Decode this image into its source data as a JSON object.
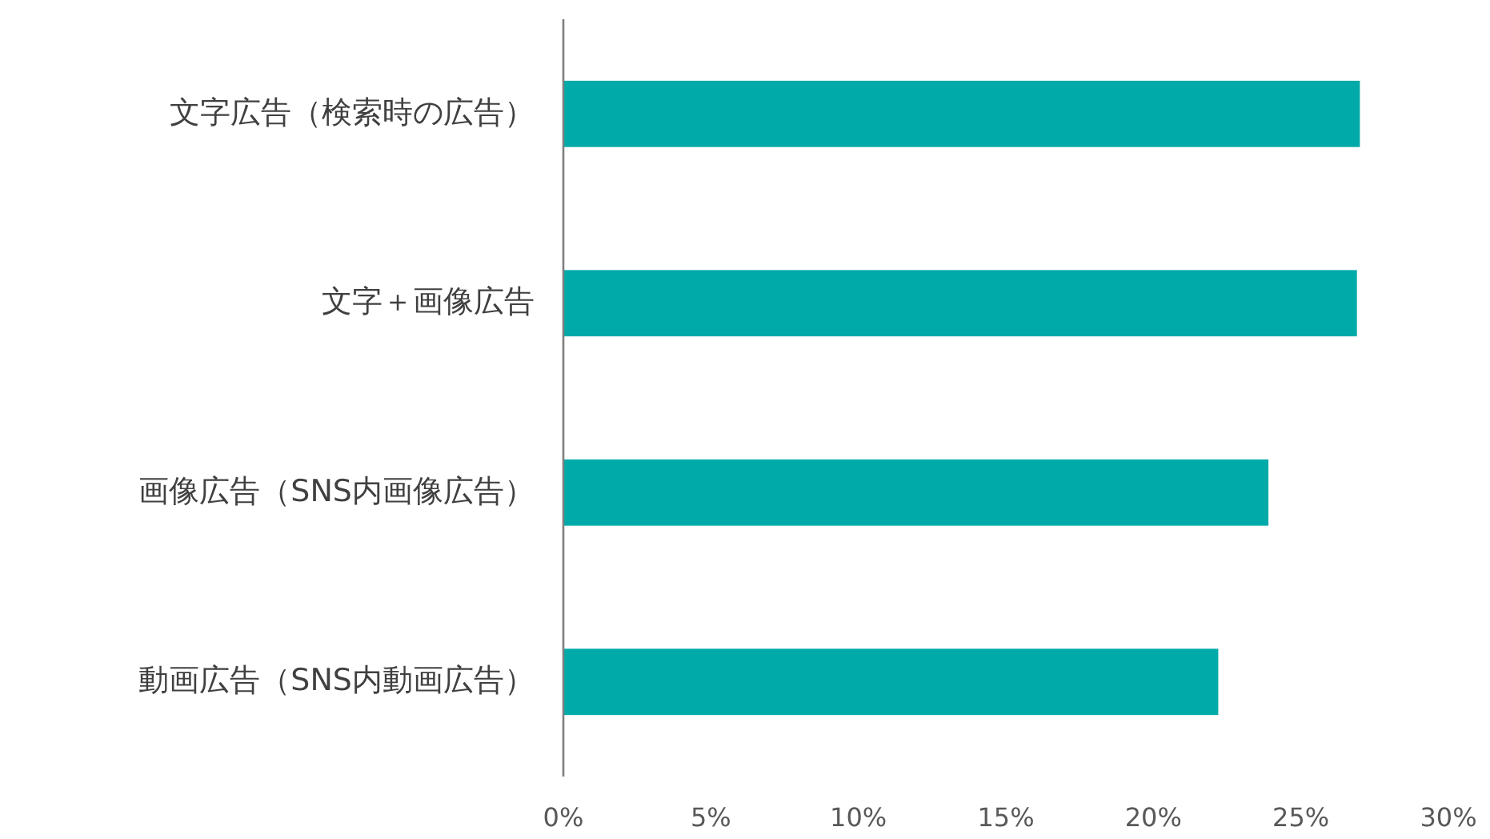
{
  "chart_data": {
    "type": "bar",
    "orientation": "horizontal",
    "categories": [
      "文字広告（検索時の広告）",
      "文字＋画像広告",
      "画像広告（SNS内画像広告）",
      "動画広告（SNS内動画広告）"
    ],
    "values": [
      27.0,
      26.9,
      23.9,
      22.2
    ],
    "color": "#00aaa8",
    "xlim": [
      0,
      30
    ],
    "xticks": [
      {
        "value": 0,
        "label": "0%"
      },
      {
        "value": 5,
        "label": "5%"
      },
      {
        "value": 10,
        "label": "10%"
      },
      {
        "value": 15,
        "label": "15%"
      },
      {
        "value": 20,
        "label": "20%"
      },
      {
        "value": 25,
        "label": "25%"
      },
      {
        "value": 30,
        "label": "30%"
      }
    ]
  }
}
